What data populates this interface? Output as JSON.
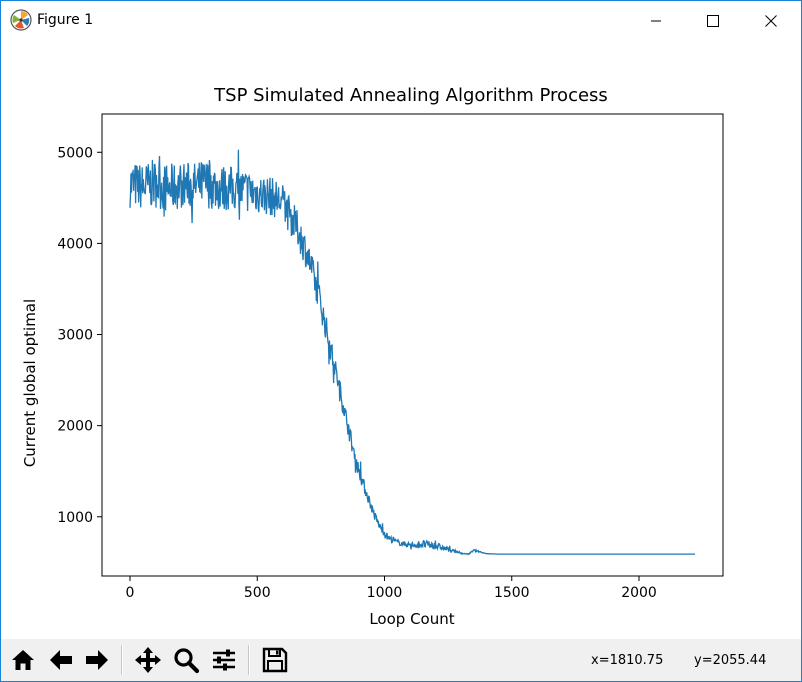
{
  "window": {
    "title": "Figure 1"
  },
  "toolbar": {
    "buttons": [
      {
        "name": "home-icon"
      },
      {
        "name": "back-arrow-icon"
      },
      {
        "name": "forward-arrow-icon"
      },
      {
        "name": "pan-icon"
      },
      {
        "name": "zoom-icon"
      },
      {
        "name": "configure-subplots-icon"
      },
      {
        "name": "save-icon"
      }
    ],
    "coord_x": "x=1810.75",
    "coord_y": "y=2055.44"
  },
  "chart_data": {
    "type": "line",
    "title": "TSP Simulated Annealing Algorithm Process",
    "xlabel": "Loop Count",
    "ylabel": "Current global optimal",
    "xlim": [
      -110,
      2330
    ],
    "ylim": [
      350,
      5420
    ],
    "xticks": [
      0,
      500,
      1000,
      1500,
      2000
    ],
    "yticks": [
      1000,
      2000,
      3000,
      4000,
      5000
    ],
    "grid": false,
    "line_color": "#1f77b4",
    "series": [
      {
        "x": [
          0,
          50,
          100,
          150,
          200,
          250,
          300,
          350,
          400,
          450,
          500,
          550,
          600,
          620,
          640,
          660,
          680,
          700,
          720,
          740,
          760,
          780,
          800,
          820,
          840,
          860,
          880,
          900,
          920,
          940,
          960,
          980,
          1000,
          1020,
          1050,
          1080,
          1100,
          1150,
          1200,
          1250,
          1280,
          1300,
          1330,
          1350,
          1370,
          1400,
          1450,
          1500,
          1600,
          1700,
          1800,
          1900,
          2000,
          2100,
          2220
        ],
        "y": [
          4650,
          4620,
          4660,
          4600,
          4640,
          4630,
          4660,
          4610,
          4600,
          4580,
          4550,
          4520,
          4450,
          4350,
          4250,
          4150,
          4000,
          3850,
          3650,
          3450,
          3200,
          2950,
          2700,
          2450,
          2200,
          1950,
          1700,
          1500,
          1330,
          1180,
          1020,
          900,
          820,
          760,
          720,
          700,
          690,
          700,
          680,
          640,
          620,
          600,
          590,
          630,
          620,
          595,
          590,
          590,
          590,
          590,
          590,
          590,
          590,
          590,
          590
        ],
        "noise": [
          260,
          260,
          270,
          270,
          260,
          260,
          270,
          260,
          250,
          240,
          230,
          220,
          210,
          210,
          200,
          200,
          190,
          180,
          170,
          160,
          150,
          140,
          130,
          120,
          110,
          100,
          90,
          80,
          70,
          60,
          50,
          45,
          40,
          35,
          30,
          30,
          30,
          45,
          40,
          25,
          10,
          5,
          5,
          10,
          8,
          0,
          0,
          0,
          0,
          0,
          0,
          0,
          0,
          0,
          0
        ]
      }
    ]
  }
}
